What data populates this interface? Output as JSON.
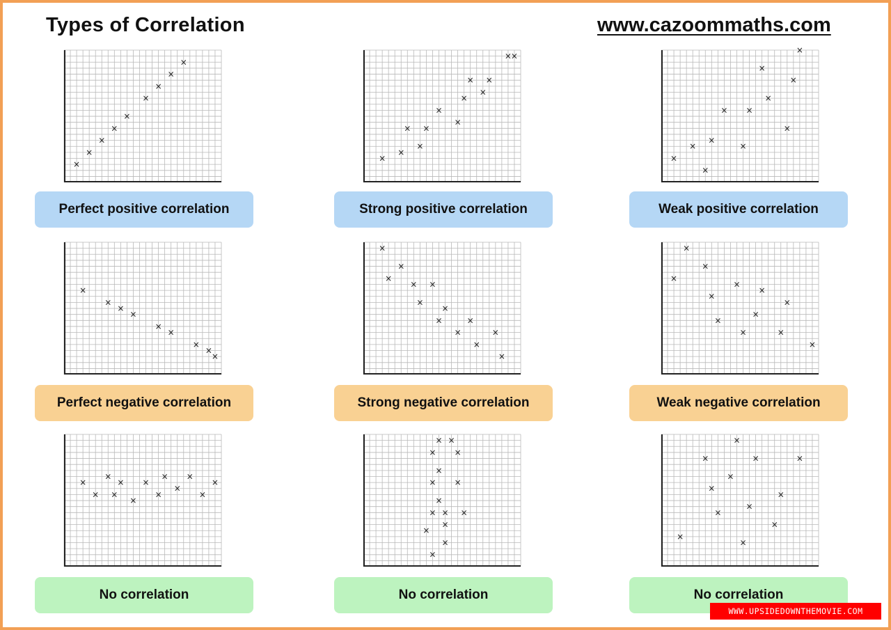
{
  "header": {
    "title": "Types of Correlation",
    "site": "www.cazoommaths.com"
  },
  "colors": {
    "positive": "#b5d7f5",
    "negative": "#f9d193",
    "none": "#bdf3bf",
    "border": "#f2a055",
    "grid": "#b9b9b9"
  },
  "watermark": "WWW.UPSIDEDOWNTHEMOVIE.COM",
  "chart_data": [
    {
      "type": "scatter",
      "label": "Perfect positive correlation",
      "group": "positive",
      "xlim": [
        0,
        25
      ],
      "ylim": [
        0,
        22
      ],
      "points": [
        [
          2,
          3
        ],
        [
          4,
          5
        ],
        [
          6,
          7
        ],
        [
          8,
          9
        ],
        [
          10,
          11
        ],
        [
          13,
          14
        ],
        [
          15,
          16
        ],
        [
          17,
          18
        ],
        [
          19,
          20
        ]
      ]
    },
    {
      "type": "scatter",
      "label": "Strong positive correlation",
      "group": "positive",
      "xlim": [
        0,
        25
      ],
      "ylim": [
        0,
        22
      ],
      "points": [
        [
          3,
          4
        ],
        [
          6,
          5
        ],
        [
          9,
          6
        ],
        [
          7,
          9
        ],
        [
          10,
          9
        ],
        [
          12,
          12
        ],
        [
          15,
          10
        ],
        [
          16,
          14
        ],
        [
          17,
          17
        ],
        [
          19,
          15
        ],
        [
          20,
          17
        ],
        [
          23,
          21
        ],
        [
          24,
          21
        ]
      ]
    },
    {
      "type": "scatter",
      "label": "Weak positive correlation",
      "group": "positive",
      "xlim": [
        0,
        25
      ],
      "ylim": [
        0,
        22
      ],
      "points": [
        [
          2,
          4
        ],
        [
          5,
          6
        ],
        [
          7,
          2
        ],
        [
          8,
          7
        ],
        [
          10,
          12
        ],
        [
          13,
          6
        ],
        [
          14,
          12
        ],
        [
          16,
          19
        ],
        [
          17,
          14
        ],
        [
          20,
          9
        ],
        [
          21,
          17
        ],
        [
          22,
          22
        ]
      ]
    },
    {
      "type": "scatter",
      "label": "Perfect negative correlation",
      "group": "negative",
      "xlim": [
        0,
        25
      ],
      "ylim": [
        0,
        22
      ],
      "points": [
        [
          3,
          14
        ],
        [
          7,
          12
        ],
        [
          9,
          11
        ],
        [
          11,
          10
        ],
        [
          15,
          8
        ],
        [
          17,
          7
        ],
        [
          21,
          5
        ],
        [
          23,
          4
        ],
        [
          24,
          3
        ]
      ]
    },
    {
      "type": "scatter",
      "label": "Strong negative correlation",
      "group": "negative",
      "xlim": [
        0,
        25
      ],
      "ylim": [
        0,
        22
      ],
      "points": [
        [
          3,
          21
        ],
        [
          4,
          16
        ],
        [
          6,
          18
        ],
        [
          8,
          15
        ],
        [
          9,
          12
        ],
        [
          11,
          15
        ],
        [
          12,
          9
        ],
        [
          13,
          11
        ],
        [
          15,
          7
        ],
        [
          17,
          9
        ],
        [
          18,
          5
        ],
        [
          21,
          7
        ],
        [
          22,
          3
        ]
      ]
    },
    {
      "type": "scatter",
      "label": "Weak negative correlation",
      "group": "negative",
      "xlim": [
        0,
        25
      ],
      "ylim": [
        0,
        22
      ],
      "points": [
        [
          2,
          16
        ],
        [
          4,
          21
        ],
        [
          7,
          18
        ],
        [
          8,
          13
        ],
        [
          9,
          9
        ],
        [
          12,
          15
        ],
        [
          13,
          7
        ],
        [
          15,
          10
        ],
        [
          16,
          14
        ],
        [
          19,
          7
        ],
        [
          20,
          12
        ],
        [
          24,
          5
        ]
      ]
    },
    {
      "type": "scatter",
      "label": "No correlation",
      "group": "none",
      "xlim": [
        0,
        25
      ],
      "ylim": [
        0,
        22
      ],
      "points": [
        [
          3,
          14
        ],
        [
          5,
          12
        ],
        [
          7,
          15
        ],
        [
          8,
          12
        ],
        [
          9,
          14
        ],
        [
          11,
          11
        ],
        [
          13,
          14
        ],
        [
          15,
          12
        ],
        [
          16,
          15
        ],
        [
          18,
          13
        ],
        [
          20,
          15
        ],
        [
          22,
          12
        ],
        [
          24,
          14
        ]
      ]
    },
    {
      "type": "scatter",
      "label": "No correlation",
      "group": "none",
      "xlim": [
        0,
        25
      ],
      "ylim": [
        0,
        22
      ],
      "points": [
        [
          12,
          21
        ],
        [
          11,
          19
        ],
        [
          14,
          21
        ],
        [
          15,
          19
        ],
        [
          12,
          16
        ],
        [
          11,
          14
        ],
        [
          15,
          14
        ],
        [
          12,
          11
        ],
        [
          11,
          9
        ],
        [
          13,
          9
        ],
        [
          16,
          9
        ],
        [
          10,
          6
        ],
        [
          13,
          7
        ],
        [
          13,
          4
        ],
        [
          11,
          2
        ]
      ]
    },
    {
      "type": "scatter",
      "label": "No correlation",
      "group": "none",
      "xlim": [
        0,
        25
      ],
      "ylim": [
        0,
        22
      ],
      "points": [
        [
          3,
          5
        ],
        [
          7,
          18
        ],
        [
          8,
          13
        ],
        [
          9,
          9
        ],
        [
          12,
          21
        ],
        [
          11,
          15
        ],
        [
          15,
          18
        ],
        [
          13,
          4
        ],
        [
          14,
          10
        ],
        [
          18,
          7
        ],
        [
          19,
          12
        ],
        [
          22,
          18
        ]
      ]
    }
  ]
}
